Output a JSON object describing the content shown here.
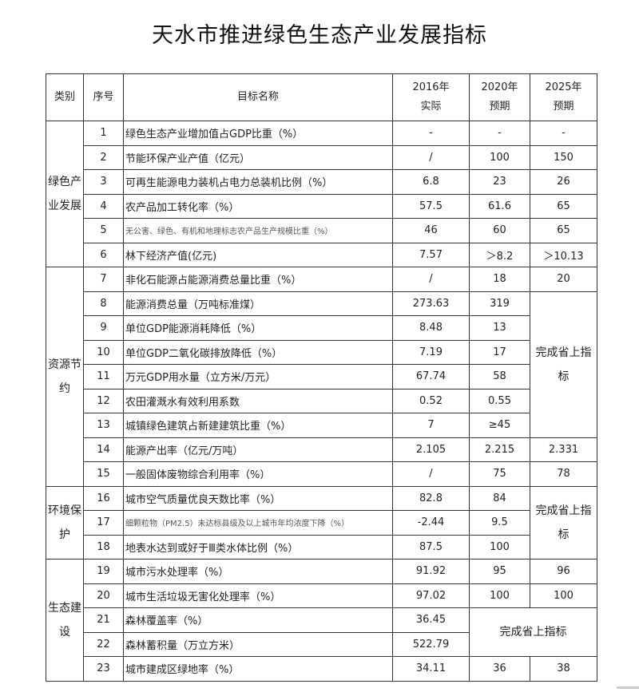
{
  "title": "天水市推进绿色生态产业发展指标",
  "headers": {
    "category": "类别",
    "index": "序号",
    "name": "目标名称",
    "y2016": [
      "2016年",
      "实际"
    ],
    "y2020": [
      "2020年",
      "预期"
    ],
    "y2025": [
      "2025年",
      "预期"
    ]
  },
  "categories": {
    "green": "绿色产业发展",
    "resource": "资源节约",
    "environment": "环境保护",
    "ecology": "生态建设"
  },
  "merged_text": {
    "resource_2025": "完成省上指标",
    "environment_2025": "完成省上指标",
    "ecology_2020_2025": "完成省上指标"
  },
  "rows": [
    {
      "no": "1",
      "name": "绿色生态产业增加值占GDP比重（%）",
      "v2016": "-",
      "v2020": "-",
      "v2025": "-"
    },
    {
      "no": "2",
      "name": "节能环保产业产值（亿元）",
      "v2016": "/",
      "v2020": "100",
      "v2025": "150"
    },
    {
      "no": "3",
      "name": "可再生能源电力装机占电力总装机比例（%）",
      "v2016": "6.8",
      "v2020": "23",
      "v2025": "26"
    },
    {
      "no": "4",
      "name": "农产品加工转化率（%）",
      "v2016": "57.5",
      "v2020": "61.6",
      "v2025": "65"
    },
    {
      "no": "5",
      "name": "无公害、绿色、有机和地理标志农产品生产规模比重（%）",
      "v2016": "46",
      "v2020": "60",
      "v2025": "65"
    },
    {
      "no": "6",
      "name": "林下经济产值(亿元)",
      "v2016": "7.57",
      "v2020": "＞8.2",
      "v2025": "＞10.13"
    },
    {
      "no": "7",
      "name": "非化石能源占能源消费总量比重（%）",
      "v2016": "/",
      "v2020": "18",
      "v2025": "20"
    },
    {
      "no": "8",
      "name": "能源消费总量（万吨标准煤）",
      "v2016": "273.63",
      "v2020": "319"
    },
    {
      "no": "9",
      "name": "单位GDP能源消耗降低（%）",
      "v2016": "8.48",
      "v2020": "13"
    },
    {
      "no": "10",
      "name": "单位GDP二氧化碳排放降低（%）",
      "v2016": "7.19",
      "v2020": "17"
    },
    {
      "no": "11",
      "name": "万元GDP用水量（立方米/万元）",
      "v2016": "67.74",
      "v2020": "58"
    },
    {
      "no": "12",
      "name": "农田灌溉水有效利用系数",
      "v2016": "0.52",
      "v2020": "0.55"
    },
    {
      "no": "13",
      "name": "城镇绿色建筑占新建建筑比重（%）",
      "v2016": "7",
      "v2020": "≥45"
    },
    {
      "no": "14",
      "name": "能源产出率（亿元/万吨）",
      "v2016": "2.105",
      "v2020": "2.215",
      "v2025": "2.331"
    },
    {
      "no": "15",
      "name": "一般固体废物综合利用率（%）",
      "v2016": "/",
      "v2020": "75",
      "v2025": "78"
    },
    {
      "no": "16",
      "name": "城市空气质量优良天数比率（%）",
      "v2016": "82.8",
      "v2020": "84"
    },
    {
      "no": "17",
      "name": "细颗粒物（PM2.5）未达标县级及以上城市年均浓度下降（%）",
      "v2016": "-2.44",
      "v2020": "9.5"
    },
    {
      "no": "18",
      "name": "地表水达到或好于Ⅲ类水体比例（%）",
      "v2016": "87.5",
      "v2020": "100"
    },
    {
      "no": "19",
      "name": "城市污水处理率（%）",
      "v2016": "91.92",
      "v2020": "95",
      "v2025": "96"
    },
    {
      "no": "20",
      "name": "城市生活垃圾无害化处理率（%）",
      "v2016": "97.02",
      "v2020": "100",
      "v2025": "100"
    },
    {
      "no": "21",
      "name": "森林覆盖率（%）",
      "v2016": "36.45"
    },
    {
      "no": "22",
      "name": "森林蓄积量（万立方米）",
      "v2016": "522.79"
    },
    {
      "no": "23",
      "name": "城市建成区绿地率（%）",
      "v2016": "34.11",
      "v2020": "36",
      "v2025": "38"
    }
  ]
}
